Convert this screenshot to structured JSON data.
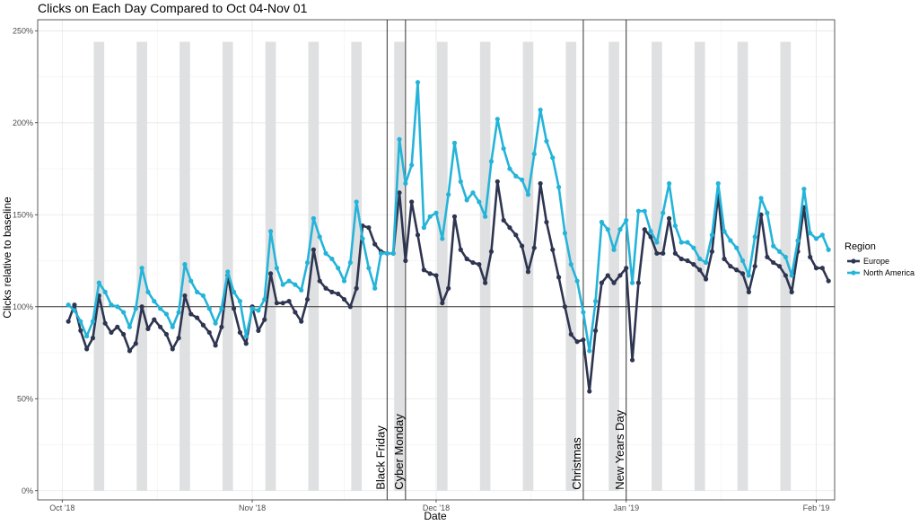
{
  "chart_data": {
    "type": "line",
    "title": "Clicks on Each Day Compared to Oct 04-Nov 01",
    "xlabel": "Date",
    "ylabel": "Clicks relative to baseline",
    "x_range": [
      "2018-09-27",
      "2019-02-04"
    ],
    "ylim": [
      -0.05,
      2.56
    ],
    "x_ticks": [
      {
        "date": "2018-10-01",
        "label": "Oct '18"
      },
      {
        "date": "2018-11-01",
        "label": "Nov '18"
      },
      {
        "date": "2018-12-01",
        "label": "Dec '18"
      },
      {
        "date": "2019-01-01",
        "label": "Jan '19"
      },
      {
        "date": "2019-02-01",
        "label": "Feb '19"
      }
    ],
    "y_ticks": [
      {
        "value": 0,
        "label": "0%"
      },
      {
        "value": 0.5,
        "label": "50%"
      },
      {
        "value": 1.0,
        "label": "100%"
      },
      {
        "value": 1.5,
        "label": "150%"
      },
      {
        "value": 2.0,
        "label": "200%"
      },
      {
        "value": 2.5,
        "label": "250%"
      }
    ],
    "baseline": 1.0,
    "grid": true,
    "weekend_bands": [
      [
        "2018-10-06",
        "2018-10-08"
      ],
      [
        "2018-10-13",
        "2018-10-15"
      ],
      [
        "2018-10-20",
        "2018-10-22"
      ],
      [
        "2018-10-27",
        "2018-10-29"
      ],
      [
        "2018-11-03",
        "2018-11-05"
      ],
      [
        "2018-11-10",
        "2018-11-12"
      ],
      [
        "2018-11-17",
        "2018-11-19"
      ],
      [
        "2018-11-24",
        "2018-11-26"
      ],
      [
        "2018-12-01",
        "2018-12-03"
      ],
      [
        "2018-12-08",
        "2018-12-10"
      ],
      [
        "2018-12-15",
        "2018-12-17"
      ],
      [
        "2018-12-22",
        "2018-12-24"
      ],
      [
        "2018-12-29",
        "2018-12-31"
      ],
      [
        "2019-01-05",
        "2019-01-07"
      ],
      [
        "2019-01-12",
        "2019-01-14"
      ],
      [
        "2019-01-19",
        "2019-01-21"
      ],
      [
        "2019-01-26",
        "2019-01-28"
      ]
    ],
    "weekend_band_top": 2.44,
    "events": [
      {
        "date": "2018-11-23",
        "label": "Black Friday"
      },
      {
        "date": "2018-11-26",
        "label": "Cyber Monday"
      },
      {
        "date": "2018-12-25",
        "label": "Christmas"
      },
      {
        "date": "2019-01-01",
        "label": "New Years Day"
      }
    ],
    "x_start": "2018-10-02",
    "series": [
      {
        "name": "Europe",
        "color": "#2e3550",
        "values": [
          0.92,
          1.01,
          0.87,
          0.77,
          0.83,
          1.06,
          0.91,
          0.86,
          0.89,
          0.85,
          0.76,
          0.8,
          1.0,
          0.88,
          0.93,
          0.89,
          0.85,
          0.77,
          0.83,
          1.06,
          0.96,
          0.94,
          0.9,
          0.86,
          0.79,
          0.89,
          1.17,
          0.99,
          0.86,
          0.8,
          1.0,
          0.87,
          0.93,
          1.18,
          1.02,
          1.02,
          1.03,
          0.97,
          0.92,
          1.04,
          1.31,
          1.14,
          1.1,
          1.08,
          1.07,
          1.04,
          1.0,
          1.1,
          1.44,
          1.43,
          1.34,
          1.3,
          1.29,
          1.29,
          1.62,
          1.25,
          1.57,
          1.39,
          1.2,
          1.18,
          1.17,
          1.02,
          1.1,
          1.49,
          1.31,
          1.26,
          1.24,
          1.23,
          1.13,
          1.3,
          1.68,
          1.47,
          1.43,
          1.39,
          1.33,
          1.19,
          1.32,
          1.67,
          1.46,
          1.31,
          1.16,
          1.0,
          0.85,
          0.81,
          0.82,
          0.54,
          0.87,
          1.13,
          1.17,
          1.13,
          1.17,
          1.21,
          0.71,
          1.13,
          1.42,
          1.38,
          1.29,
          1.29,
          1.48,
          1.29,
          1.26,
          1.25,
          1.23,
          1.2,
          1.15,
          1.3,
          1.61,
          1.26,
          1.22,
          1.2,
          1.18,
          1.08,
          1.22,
          1.5,
          1.27,
          1.24,
          1.22,
          1.17,
          1.08,
          1.3,
          1.54,
          1.27,
          1.21,
          1.21,
          1.14
        ]
      },
      {
        "name": "North America",
        "color": "#25b4d9",
        "values": [
          1.01,
          0.98,
          0.92,
          0.84,
          0.92,
          1.13,
          1.08,
          1.01,
          1.0,
          0.97,
          0.89,
          0.99,
          1.21,
          1.08,
          1.03,
          0.99,
          0.96,
          0.89,
          0.97,
          1.23,
          1.14,
          1.08,
          1.06,
          0.99,
          0.91,
          0.99,
          1.19,
          1.08,
          1.03,
          0.84,
          0.99,
          0.98,
          1.04,
          1.41,
          1.21,
          1.12,
          1.14,
          1.12,
          1.09,
          1.24,
          1.48,
          1.38,
          1.29,
          1.26,
          1.21,
          1.14,
          1.24,
          1.57,
          1.37,
          1.21,
          1.1,
          1.29,
          1.29,
          1.29,
          1.91,
          1.67,
          1.77,
          2.22,
          1.43,
          1.49,
          1.51,
          1.37,
          1.61,
          1.89,
          1.68,
          1.58,
          1.62,
          1.57,
          1.49,
          1.79,
          2.02,
          1.86,
          1.75,
          1.71,
          1.69,
          1.61,
          1.83,
          2.07,
          1.9,
          1.81,
          1.65,
          1.4,
          1.23,
          1.14,
          0.97,
          0.76,
          1.03,
          1.46,
          1.42,
          1.31,
          1.42,
          1.47,
          1.13,
          1.52,
          1.52,
          1.41,
          1.35,
          1.51,
          1.67,
          1.44,
          1.35,
          1.35,
          1.32,
          1.26,
          1.24,
          1.39,
          1.67,
          1.41,
          1.36,
          1.32,
          1.25,
          1.17,
          1.38,
          1.59,
          1.51,
          1.33,
          1.3,
          1.27,
          1.17,
          1.36,
          1.64,
          1.4,
          1.37,
          1.39,
          1.31
        ]
      }
    ],
    "legend": {
      "title": "Region",
      "position": "right"
    }
  }
}
